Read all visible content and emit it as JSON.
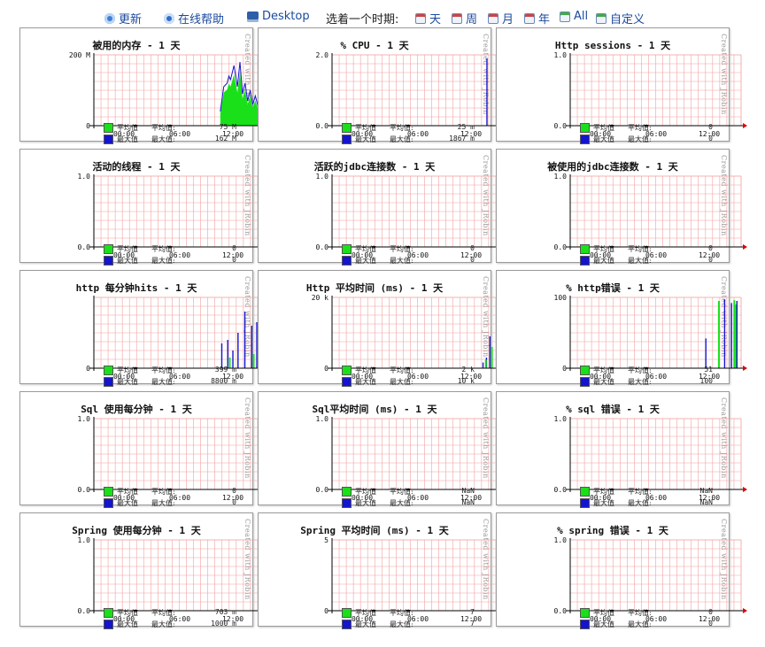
{
  "toolbar": {
    "refresh": "更新",
    "help": "在线帮助",
    "desktop": "Desktop",
    "choose_period": "选着一个时期:",
    "day": "天",
    "week": "周",
    "month": "月",
    "year": "年",
    "all": "All",
    "custom": "自定义"
  },
  "colors": {
    "average": "#19e019",
    "maximum": "#1414d0",
    "grid": "#f2a0a0"
  },
  "credit": "Created with JRobin",
  "x_ticks": [
    "00:00",
    "06:00",
    "12:00"
  ],
  "legend_labels": {
    "avg_name": "平均值",
    "avg_key": "平均值:",
    "max_name": "最大值",
    "max_key": "最大值:"
  },
  "panels": [
    {
      "title": "被用的内存 - 1 天",
      "ytop": "200 M",
      "ybottom": "0",
      "avg": "75 M",
      "max": "162 M",
      "chart_data": {
        "type": "area",
        "profile": "memory"
      }
    },
    {
      "title": "% CPU - 1 天",
      "ytop": "2.0",
      "ybottom": "0.0",
      "avg": "25 m",
      "max": "1867 m",
      "chart_data": {
        "type": "bar",
        "profile": "cpu"
      }
    },
    {
      "title": "Http sessions - 1 天",
      "ytop": "1.0",
      "ybottom": "0.0",
      "avg": "0",
      "max": "0",
      "chart_data": {
        "type": "line",
        "profile": "none"
      }
    },
    {
      "title": "活动的线程 - 1 天",
      "ytop": "1.0",
      "ybottom": "0.0",
      "avg": "0",
      "max": "0",
      "chart_data": {
        "type": "line",
        "profile": "none"
      }
    },
    {
      "title": "活跃的jdbc连接数 - 1 天",
      "ytop": "1.0",
      "ybottom": "0.0",
      "avg": "0",
      "max": "0",
      "chart_data": {
        "type": "line",
        "profile": "none"
      }
    },
    {
      "title": "被使用的jdbc连接数 - 1 天",
      "ytop": "1.0",
      "ybottom": "0.0",
      "avg": "0",
      "max": "0",
      "chart_data": {
        "type": "line",
        "profile": "none"
      }
    },
    {
      "title": "http 每分钟hits - 1 天",
      "ytop": "",
      "ybottom": "0",
      "avg": "399 m",
      "max": "8800 m",
      "chart_data": {
        "type": "bar",
        "profile": "hits"
      }
    },
    {
      "title": "Http 平均时间 (ms) - 1 天",
      "ytop": "20 k",
      "ybottom": "0",
      "avg": "2 k",
      "max": "10 k",
      "chart_data": {
        "type": "bar",
        "profile": "httptime"
      }
    },
    {
      "title": "% http错误 - 1 天",
      "ytop": "100",
      "ybottom": "0",
      "avg": "51",
      "max": "100",
      "chart_data": {
        "type": "bar",
        "profile": "httperr"
      }
    },
    {
      "title": "Sql 使用每分钟 - 1 天",
      "ytop": "1.0",
      "ybottom": "0.0",
      "avg": "0",
      "max": "0",
      "chart_data": {
        "type": "line",
        "profile": "none"
      }
    },
    {
      "title": "Sql平均时间 (ms) - 1 天",
      "ytop": "1.0",
      "ybottom": "0.0",
      "avg": "NaN",
      "max": "NaN",
      "chart_data": {
        "type": "line",
        "profile": "none"
      }
    },
    {
      "title": "% sql 错误 - 1 天",
      "ytop": "1.0",
      "ybottom": "0.0",
      "avg": "NaN",
      "max": "NaN",
      "chart_data": {
        "type": "line",
        "profile": "none"
      }
    },
    {
      "title": "Spring 使用每分钟 - 1 天",
      "ytop": "1.0",
      "ybottom": "0.0",
      "avg": "703 m",
      "max": "1000 m",
      "chart_data": {
        "type": "bar",
        "profile": "spring"
      }
    },
    {
      "title": "Spring 平均时间 (ms) - 1 天",
      "ytop": "5",
      "ybottom": "0",
      "avg": "7",
      "max": "7",
      "chart_data": {
        "type": "bar",
        "profile": "springtime"
      }
    },
    {
      "title": "% spring 错误 - 1 天",
      "ytop": "1.0",
      "ybottom": "0.0",
      "avg": "0",
      "max": "0",
      "chart_data": {
        "type": "line",
        "profile": "none"
      }
    }
  ]
}
